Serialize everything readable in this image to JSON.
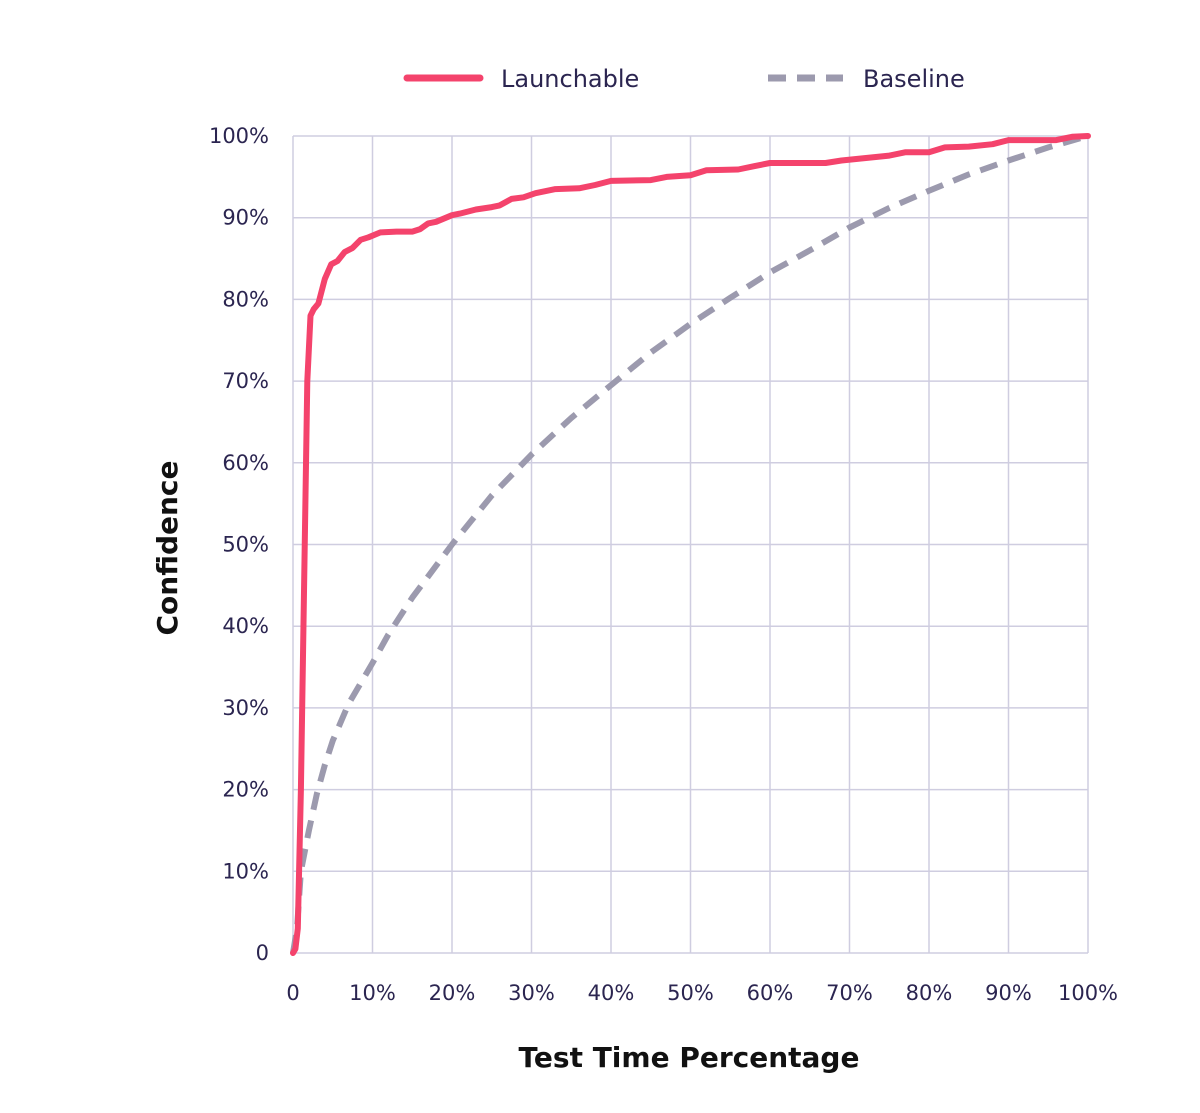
{
  "chart_data": {
    "type": "line",
    "xlabel": "Test Time Percentage",
    "ylabel": "Confidence",
    "xlim": [
      0,
      100
    ],
    "ylim": [
      0,
      100
    ],
    "grid": true,
    "legend_position": "top",
    "x_tick_labels": [
      "0",
      "10%",
      "20%",
      "30%",
      "40%",
      "50%",
      "60%",
      "70%",
      "80%",
      "90%",
      "100%"
    ],
    "y_tick_labels": [
      "0",
      "10%",
      "20%",
      "30%",
      "40%",
      "50%",
      "60%",
      "70%",
      "80%",
      "90%",
      "100%"
    ],
    "series": [
      {
        "name": "Launchable",
        "color": "#f4436c",
        "style": "solid",
        "points": [
          [
            0,
            0
          ],
          [
            0.3,
            0.5
          ],
          [
            0.6,
            3
          ],
          [
            1.0,
            20
          ],
          [
            1.4,
            45
          ],
          [
            1.8,
            70
          ],
          [
            2.2,
            78
          ],
          [
            2.6,
            78.8
          ],
          [
            3.2,
            79.5
          ],
          [
            4.0,
            82.5
          ],
          [
            4.8,
            84.3
          ],
          [
            5.6,
            84.7
          ],
          [
            6.5,
            85.8
          ],
          [
            7.5,
            86.3
          ],
          [
            8.5,
            87.3
          ],
          [
            9.5,
            87.6
          ],
          [
            11,
            88.2
          ],
          [
            13,
            88.3
          ],
          [
            15,
            88.3
          ],
          [
            16,
            88.6
          ],
          [
            17,
            89.3
          ],
          [
            18,
            89.5
          ],
          [
            20,
            90.3
          ],
          [
            21,
            90.5
          ],
          [
            23,
            91.0
          ],
          [
            25,
            91.3
          ],
          [
            26,
            91.5
          ],
          [
            27.5,
            92.3
          ],
          [
            29,
            92.5
          ],
          [
            30.5,
            93.0
          ],
          [
            33,
            93.5
          ],
          [
            36,
            93.6
          ],
          [
            38,
            94.0
          ],
          [
            40,
            94.5
          ],
          [
            45,
            94.6
          ],
          [
            47,
            95.0
          ],
          [
            50,
            95.2
          ],
          [
            52,
            95.8
          ],
          [
            56,
            95.9
          ],
          [
            58,
            96.3
          ],
          [
            60,
            96.7
          ],
          [
            67,
            96.7
          ],
          [
            69,
            97.0
          ],
          [
            71,
            97.2
          ],
          [
            75,
            97.6
          ],
          [
            77,
            98.0
          ],
          [
            80,
            98.0
          ],
          [
            82,
            98.6
          ],
          [
            85,
            98.7
          ],
          [
            88,
            99.0
          ],
          [
            90,
            99.5
          ],
          [
            96,
            99.5
          ],
          [
            98,
            99.9
          ],
          [
            100,
            100
          ]
        ]
      },
      {
        "name": "Baseline",
        "color": "#9c9aae",
        "style": "dashed",
        "points": [
          [
            0,
            0
          ],
          [
            0.5,
            3
          ],
          [
            1,
            10
          ],
          [
            2,
            15
          ],
          [
            3,
            19.5
          ],
          [
            4,
            23
          ],
          [
            5,
            26
          ],
          [
            7,
            30.5
          ],
          [
            10,
            35.5
          ],
          [
            12,
            39
          ],
          [
            15,
            43.5
          ],
          [
            20,
            50
          ],
          [
            25,
            56
          ],
          [
            30,
            61
          ],
          [
            35,
            65.5
          ],
          [
            40,
            69.5
          ],
          [
            45,
            73.5
          ],
          [
            50,
            77
          ],
          [
            55,
            80.2
          ],
          [
            60,
            83.3
          ],
          [
            65,
            86
          ],
          [
            70,
            88.8
          ],
          [
            75,
            91.2
          ],
          [
            80,
            93.3
          ],
          [
            85,
            95.3
          ],
          [
            90,
            97.0
          ],
          [
            95,
            98.6
          ],
          [
            100,
            100
          ]
        ]
      }
    ]
  }
}
